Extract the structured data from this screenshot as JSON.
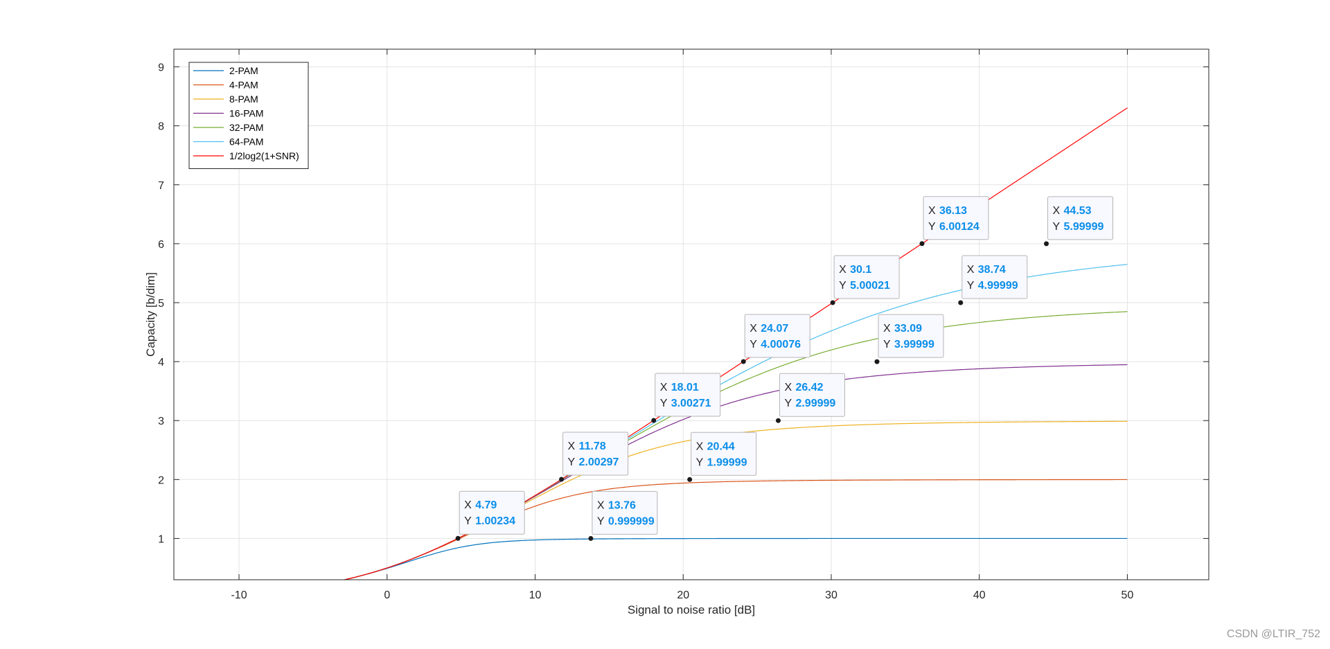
{
  "chart_data": {
    "type": "line",
    "title": "",
    "xlabel": "Signal to noise ratio [dB]",
    "ylabel": "Capacity [b/dim]",
    "xlim": [
      -14.4,
      55.5
    ],
    "ylim": [
      0.3,
      9.3
    ],
    "xticks": [
      -10,
      0,
      10,
      20,
      30,
      40,
      50
    ],
    "yticks": [
      1,
      2,
      3,
      4,
      5,
      6,
      7,
      8,
      9
    ],
    "grid": true,
    "legend_position": "top-left",
    "snr_range": [
      -10,
      50
    ],
    "series": [
      {
        "name": "2-PAM",
        "color": "#0072BD",
        "M": 2
      },
      {
        "name": "4-PAM",
        "color": "#D95319",
        "M": 4
      },
      {
        "name": "8-PAM",
        "color": "#EDB120",
        "M": 8
      },
      {
        "name": "16-PAM",
        "color": "#7E2F8E",
        "M": 16
      },
      {
        "name": "32-PAM",
        "color": "#77AC30",
        "M": 32
      },
      {
        "name": "64-PAM",
        "color": "#4DBEEE",
        "M": 64
      },
      {
        "name": "1/2log2(1+SNR)",
        "color": "#FF0000",
        "M": 0
      }
    ],
    "datatips": [
      {
        "x": 4.79,
        "y": 1.00234,
        "x_text": "4.79",
        "y_text": "1.00234",
        "pos": "above-right"
      },
      {
        "x": 13.76,
        "y": 0.999999,
        "x_text": "13.76",
        "y_text": "0.999999",
        "pos": "above-right"
      },
      {
        "x": 11.78,
        "y": 2.00297,
        "x_text": "11.78",
        "y_text": "2.00297",
        "pos": "above-right"
      },
      {
        "x": 20.44,
        "y": 1.99999,
        "x_text": "20.44",
        "y_text": "1.99999",
        "pos": "above-right"
      },
      {
        "x": 18.01,
        "y": 3.00271,
        "x_text": "18.01",
        "y_text": "3.00271",
        "pos": "above-right"
      },
      {
        "x": 26.42,
        "y": 2.99999,
        "x_text": "26.42",
        "y_text": "2.99999",
        "pos": "above-right"
      },
      {
        "x": 24.07,
        "y": 4.00076,
        "x_text": "24.07",
        "y_text": "4.00076",
        "pos": "above-right"
      },
      {
        "x": 33.09,
        "y": 3.99999,
        "x_text": "33.09",
        "y_text": "3.99999",
        "pos": "above-right"
      },
      {
        "x": 30.1,
        "y": 5.00021,
        "x_text": "30.1",
        "y_text": "5.00021",
        "pos": "above-right"
      },
      {
        "x": 38.74,
        "y": 4.99999,
        "x_text": "38.74",
        "y_text": "4.99999",
        "pos": "above-right"
      },
      {
        "x": 36.13,
        "y": 6.00124,
        "x_text": "36.13",
        "y_text": "6.00124",
        "pos": "above-right"
      },
      {
        "x": 44.53,
        "y": 5.99999,
        "x_text": "44.53",
        "y_text": "5.99999",
        "pos": "above-right"
      }
    ],
    "datatip_labels": {
      "x": "X",
      "y": "Y"
    }
  },
  "watermark": "CSDN @LTIR_752"
}
